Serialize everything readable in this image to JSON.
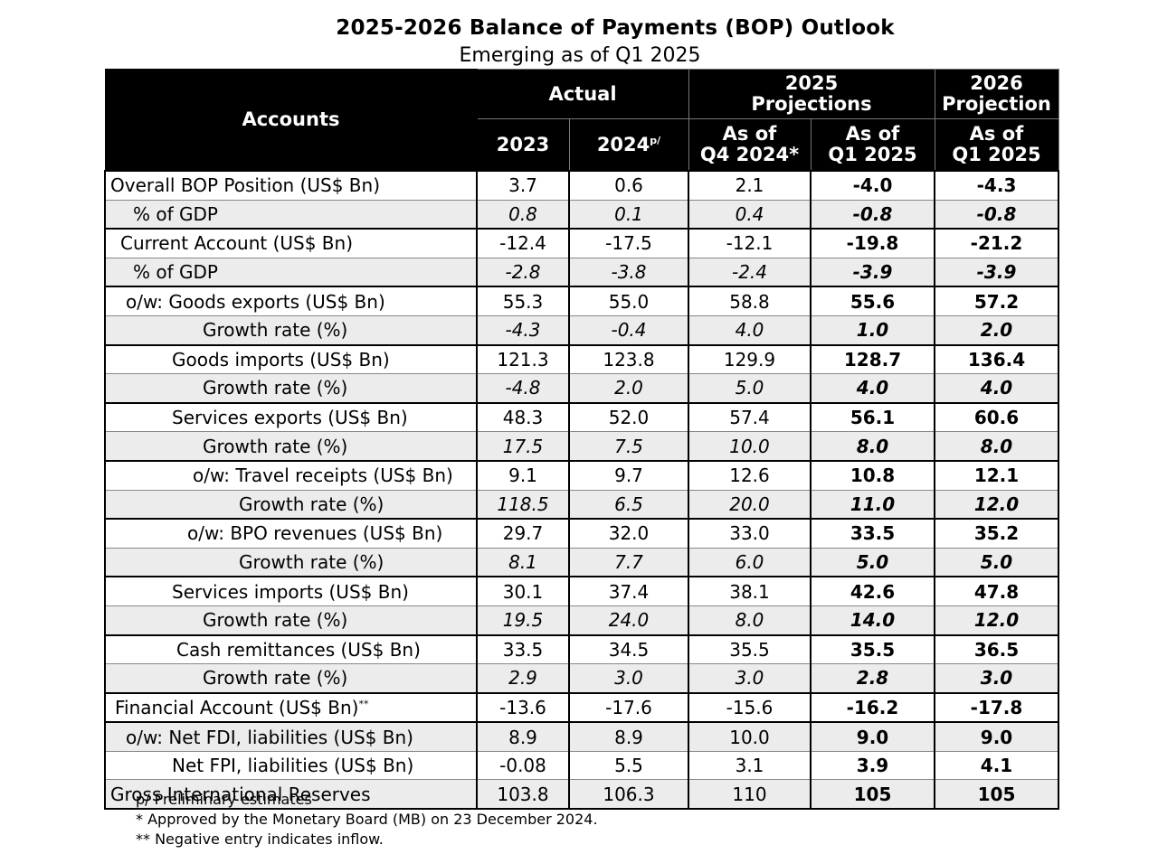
{
  "title": "2025-2026 Balance of Payments (BOP) Outlook",
  "subtitle": "Emerging as of Q1 2025",
  "header": {
    "accounts": "Accounts",
    "actual": "Actual",
    "proj2025_line1": "2025",
    "proj2025_line2": "Projections",
    "proj2026_line1": "2026",
    "proj2026_line2": "Projection",
    "y2023": "2023",
    "y2024": "2024",
    "y2024_sup": "p/",
    "q4_line1": "As of",
    "q4_line2": "Q4 2024*",
    "q1a_line1": "As of",
    "q1a_line2": "Q1 2025",
    "q1b_line1": "As of",
    "q1b_line2": "Q1 2025"
  },
  "rows": [
    {
      "label": "Overall BOP Position (US$ Bn)",
      "sup": "",
      "v": [
        "3.7",
        "0.6",
        "2.1",
        "-4.0",
        "-4.3"
      ]
    },
    {
      "label": "% of GDP",
      "sup": "",
      "v": [
        "0.8",
        "0.1",
        "0.4",
        "-0.8",
        "-0.8"
      ]
    },
    {
      "label": "Current Account (US$ Bn)",
      "sup": "",
      "v": [
        "-12.4",
        "-17.5",
        "-12.1",
        "-19.8",
        "-21.2"
      ]
    },
    {
      "label": "% of GDP",
      "sup": "",
      "v": [
        "-2.8",
        "-3.8",
        "-2.4",
        "-3.9",
        "-3.9"
      ]
    },
    {
      "label": "o/w: Goods exports (US$ Bn)",
      "sup": "",
      "v": [
        "55.3",
        "55.0",
        "58.8",
        "55.6",
        "57.2"
      ]
    },
    {
      "label": "Growth rate (%)",
      "sup": "",
      "v": [
        "-4.3",
        "-0.4",
        "4.0",
        "1.0",
        "2.0"
      ]
    },
    {
      "label": "Goods imports (US$ Bn)",
      "sup": "",
      "v": [
        "121.3",
        "123.8",
        "129.9",
        "128.7",
        "136.4"
      ]
    },
    {
      "label": "Growth rate (%)",
      "sup": "",
      "v": [
        "-4.8",
        "2.0",
        "5.0",
        "4.0",
        "4.0"
      ]
    },
    {
      "label": "Services exports (US$ Bn)",
      "sup": "",
      "v": [
        "48.3",
        "52.0",
        "57.4",
        "56.1",
        "60.6"
      ]
    },
    {
      "label": "Growth rate (%)",
      "sup": "",
      "v": [
        "17.5",
        "7.5",
        "10.0",
        "8.0",
        "8.0"
      ]
    },
    {
      "label": "o/w: Travel receipts (US$ Bn)",
      "sup": "",
      "v": [
        "9.1",
        "9.7",
        "12.6",
        "10.8",
        "12.1"
      ]
    },
    {
      "label": "Growth rate (%)",
      "sup": "",
      "v": [
        "118.5",
        "6.5",
        "20.0",
        "11.0",
        "12.0"
      ]
    },
    {
      "label": "o/w: BPO revenues (US$ Bn)",
      "sup": "",
      "v": [
        "29.7",
        "32.0",
        "33.0",
        "33.5",
        "35.2"
      ]
    },
    {
      "label": "Growth rate (%)",
      "sup": "",
      "v": [
        "8.1",
        "7.7",
        "6.0",
        "5.0",
        "5.0"
      ]
    },
    {
      "label": "Services imports (US$ Bn)",
      "sup": "",
      "v": [
        "30.1",
        "37.4",
        "38.1",
        "42.6",
        "47.8"
      ]
    },
    {
      "label": "Growth rate (%)",
      "sup": "",
      "v": [
        "19.5",
        "24.0",
        "8.0",
        "14.0",
        "12.0"
      ]
    },
    {
      "label": "Cash remittances (US$ Bn)",
      "sup": "",
      "v": [
        "33.5",
        "34.5",
        "35.5",
        "35.5",
        "36.5"
      ]
    },
    {
      "label": "Growth rate (%)",
      "sup": "",
      "v": [
        "2.9",
        "3.0",
        "3.0",
        "2.8",
        "3.0"
      ]
    },
    {
      "label": "Financial Account (US$ Bn)",
      "sup": "**",
      "v": [
        "-13.6",
        "-17.6",
        "-15.6",
        "-16.2",
        "-17.8"
      ]
    },
    {
      "label": "o/w: Net FDI, liabilities (US$ Bn)",
      "sup": "",
      "v": [
        "8.9",
        "8.9",
        "10.0",
        "9.0",
        "9.0"
      ]
    },
    {
      "label": "Net FPI, liabilities (US$ Bn)",
      "sup": "",
      "v": [
        "-0.08",
        "5.5",
        "3.1",
        "3.9",
        "4.1"
      ]
    },
    {
      "label": "Gross International Reserves",
      "sup": "",
      "v": [
        "103.8",
        "106.3",
        "110",
        "105",
        "105"
      ]
    }
  ],
  "notes": [
    "p/ Preliminary estimates",
    "* Approved by the Monetary Board (MB) on 23 December 2024.",
    "** Negative entry indicates inflow."
  ]
}
